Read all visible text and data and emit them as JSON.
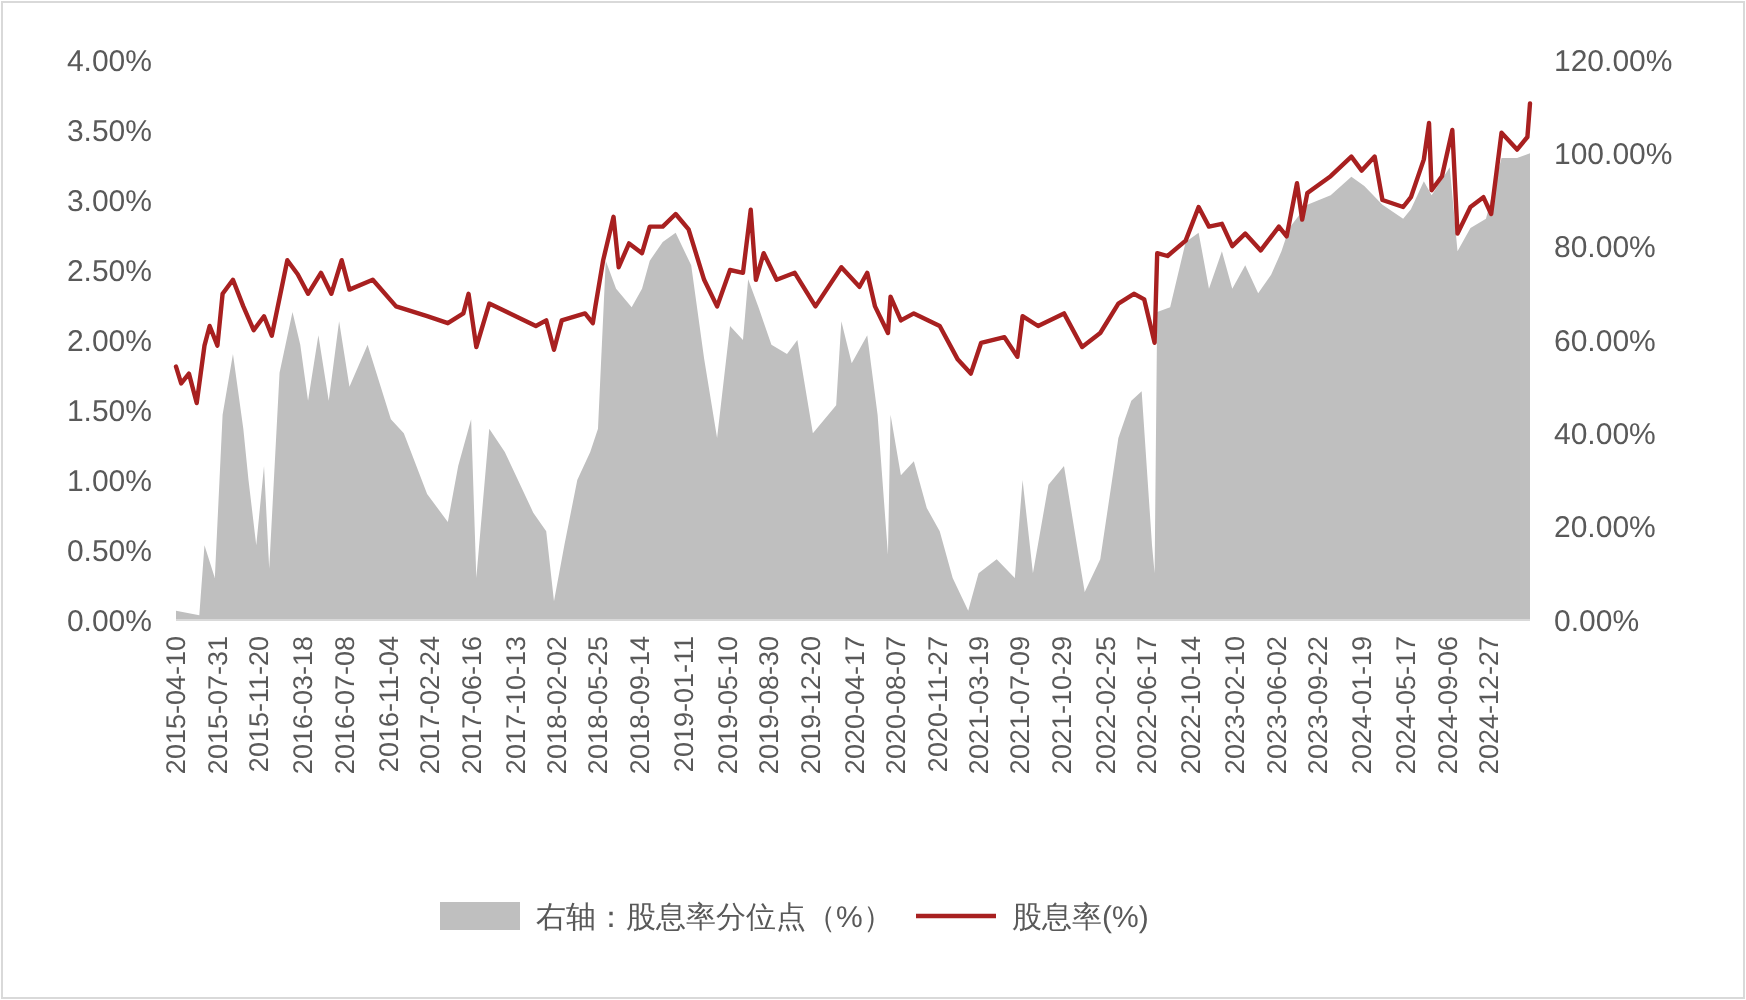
{
  "chart_data": {
    "type": "line",
    "legend": "bottom",
    "grid": false,
    "xlim": [
      "2015-04-10",
      "2025-04-18"
    ],
    "xticks": [
      "2015-04-10",
      "2015-07-31",
      "2015-11-20",
      "2016-03-18",
      "2016-07-08",
      "2016-11-04",
      "2017-02-24",
      "2017-06-16",
      "2017-10-13",
      "2018-02-02",
      "2018-05-25",
      "2018-09-14",
      "2019-01-11",
      "2019-05-10",
      "2019-08-30",
      "2019-12-20",
      "2020-04-17",
      "2020-08-07",
      "2020-11-27",
      "2021-03-19",
      "2021-07-09",
      "2021-10-29",
      "2022-02-25",
      "2022-06-17",
      "2022-10-14",
      "2023-02-10",
      "2023-06-02",
      "2023-09-22",
      "2024-01-19",
      "2024-05-17",
      "2024-09-06",
      "2024-12-27"
    ],
    "ylim": [
      0,
      4
    ],
    "yticks": [
      {
        "value": 0,
        "label": "0.00%"
      },
      {
        "value": 0.5,
        "label": "0.50%"
      },
      {
        "value": 1,
        "label": "1.00%"
      },
      {
        "value": 1.5,
        "label": "1.50%"
      },
      {
        "value": 2,
        "label": "2.00%"
      },
      {
        "value": 2.5,
        "label": "2.50%"
      },
      {
        "value": 3,
        "label": "3.00%"
      },
      {
        "value": 3.5,
        "label": "3.50%"
      },
      {
        "value": 4,
        "label": "4.00%"
      }
    ],
    "y2lim": [
      0,
      120
    ],
    "y2ticks": [
      {
        "value": 0,
        "label": "0.00%"
      },
      {
        "value": 20,
        "label": "20.00%"
      },
      {
        "value": 40,
        "label": "40.00%"
      },
      {
        "value": 60,
        "label": "60.00%"
      },
      {
        "value": 80,
        "label": "80.00%"
      },
      {
        "value": 100,
        "label": "100.00%"
      },
      {
        "value": 120,
        "label": "120.00%"
      }
    ],
    "series": [
      {
        "name": "右轴：股息率分位点（%）",
        "type": "area",
        "axis": "y2",
        "color": "#bfbfbf",
        "x": [
          "2015-04-10",
          "2015-06-12",
          "2015-06-26",
          "2015-07-24",
          "2015-08-14",
          "2015-09-11",
          "2015-10-09",
          "2015-10-23",
          "2015-11-13",
          "2015-12-04",
          "2015-12-18",
          "2016-01-15",
          "2016-02-19",
          "2016-03-11",
          "2016-04-01",
          "2016-04-29",
          "2016-05-27",
          "2016-06-24",
          "2016-07-22",
          "2016-09-09",
          "2016-11-11",
          "2016-12-16",
          "2017-02-17",
          "2017-04-14",
          "2017-05-12",
          "2017-06-16",
          "2017-06-30",
          "2017-08-04",
          "2017-09-15",
          "2017-12-01",
          "2018-01-05",
          "2018-01-26",
          "2018-02-23",
          "2018-03-30",
          "2018-05-04",
          "2018-05-25",
          "2018-06-15",
          "2018-07-13",
          "2018-08-24",
          "2018-09-21",
          "2018-10-12",
          "2018-11-16",
          "2018-12-21",
          "2019-02-01",
          "2019-03-08",
          "2019-04-12",
          "2019-05-17",
          "2019-06-21",
          "2019-07-05",
          "2019-08-02",
          "2019-09-06",
          "2019-10-18",
          "2019-11-15",
          "2019-12-27",
          "2020-02-28",
          "2020-03-13",
          "2020-04-10",
          "2020-05-22",
          "2020-06-19",
          "2020-07-17",
          "2020-07-24",
          "2020-08-21",
          "2020-09-25",
          "2020-10-30",
          "2020-12-04",
          "2021-01-08",
          "2021-02-19",
          "2021-03-19",
          "2021-05-07",
          "2021-06-25",
          "2021-07-16",
          "2021-08-13",
          "2021-09-24",
          "2021-11-05",
          "2021-12-10",
          "2021-12-31",
          "2022-02-11",
          "2022-04-01",
          "2022-05-06",
          "2022-06-03",
          "2022-07-01",
          "2022-07-08",
          "2022-07-15",
          "2022-08-19",
          "2022-09-30",
          "2022-11-04",
          "2022-12-02",
          "2023-01-06",
          "2023-02-03",
          "2023-03-10",
          "2023-04-14",
          "2023-05-19",
          "2023-06-16",
          "2023-07-07",
          "2023-08-25",
          "2023-10-27",
          "2023-12-22",
          "2024-01-26",
          "2024-03-15",
          "2024-05-10",
          "2024-05-31",
          "2024-07-05",
          "2024-07-26",
          "2024-09-13",
          "2024-10-04",
          "2024-11-08",
          "2024-12-20",
          "2025-01-31",
          "2025-03-14",
          "2025-04-18"
        ],
        "values": [
          2,
          1,
          16,
          9,
          44,
          57,
          41,
          30,
          16,
          33,
          11,
          53,
          66,
          59,
          47,
          61,
          47,
          64,
          50,
          59,
          43,
          40,
          27,
          21,
          33,
          43,
          9,
          41,
          36,
          23,
          19,
          4,
          16,
          30,
          36,
          41,
          77,
          71,
          67,
          71,
          77,
          81,
          83,
          76,
          56,
          39,
          63,
          60,
          73,
          67,
          59,
          57,
          60,
          40,
          46,
          64,
          55,
          61,
          44,
          14,
          44,
          31,
          34,
          24,
          19,
          9,
          2,
          10,
          13,
          9,
          30,
          10,
          29,
          33,
          16,
          6,
          13,
          39,
          47,
          49,
          16,
          10,
          66,
          67,
          81,
          83,
          71,
          79,
          71,
          76,
          70,
          74,
          79,
          84,
          89,
          91,
          95,
          93,
          89,
          86,
          88,
          94,
          91,
          97,
          79,
          84,
          86,
          99,
          99,
          100
        ]
      },
      {
        "name": "股息率(%)",
        "color": "#a82020",
        "x": [
          "2015-04-10",
          "2015-04-24",
          "2015-05-15",
          "2015-06-05",
          "2015-06-26",
          "2015-07-10",
          "2015-07-31",
          "2015-08-14",
          "2015-09-11",
          "2015-10-09",
          "2015-11-06",
          "2015-12-04",
          "2015-12-25",
          "2016-02-05",
          "2016-03-04",
          "2016-04-01",
          "2016-05-06",
          "2016-06-03",
          "2016-07-01",
          "2016-07-22",
          "2016-09-23",
          "2016-11-25",
          "2017-02-17",
          "2017-04-14",
          "2017-05-26",
          "2017-06-09",
          "2017-06-30",
          "2017-08-04",
          "2017-09-29",
          "2017-12-08",
          "2018-01-05",
          "2018-01-26",
          "2018-02-16",
          "2018-04-20",
          "2018-05-11",
          "2018-05-18",
          "2018-06-08",
          "2018-07-06",
          "2018-07-20",
          "2018-08-17",
          "2018-09-21",
          "2018-10-12",
          "2018-11-16",
          "2018-12-21",
          "2019-01-25",
          "2019-03-08",
          "2019-04-12",
          "2019-05-17",
          "2019-06-21",
          "2019-07-12",
          "2019-07-26",
          "2019-08-16",
          "2019-09-20",
          "2019-11-08",
          "2020-01-03",
          "2020-03-13",
          "2020-05-01",
          "2020-05-22",
          "2020-06-12",
          "2020-07-17",
          "2020-07-24",
          "2020-08-21",
          "2020-09-25",
          "2020-12-04",
          "2021-01-22",
          "2021-02-26",
          "2021-03-26",
          "2021-05-28",
          "2021-07-02",
          "2021-07-16",
          "2021-08-27",
          "2021-11-05",
          "2021-12-24",
          "2022-02-11",
          "2022-04-01",
          "2022-05-13",
          "2022-06-10",
          "2022-07-08",
          "2022-07-15",
          "2022-08-12",
          "2022-09-30",
          "2022-11-04",
          "2022-12-02",
          "2023-01-06",
          "2023-02-03",
          "2023-03-10",
          "2023-04-21",
          "2023-06-09",
          "2023-06-30",
          "2023-07-28",
          "2023-08-11",
          "2023-08-25",
          "2023-10-27",
          "2023-12-22",
          "2024-01-19",
          "2024-02-23",
          "2024-03-15",
          "2024-05-10",
          "2024-05-31",
          "2024-07-05",
          "2024-07-19",
          "2024-07-26",
          "2024-08-23",
          "2024-09-20",
          "2024-10-04",
          "2024-11-08",
          "2024-12-13",
          "2025-01-03",
          "2025-01-31",
          "2025-03-14",
          "2025-04-11",
          "2025-04-18"
        ],
        "values": [
          1.81,
          1.69,
          1.76,
          1.55,
          1.96,
          2.1,
          1.96,
          2.33,
          2.43,
          2.24,
          2.07,
          2.17,
          2.03,
          2.57,
          2.47,
          2.33,
          2.48,
          2.33,
          2.57,
          2.36,
          2.43,
          2.24,
          2.17,
          2.12,
          2.19,
          2.33,
          1.95,
          2.26,
          2.19,
          2.1,
          2.14,
          1.93,
          2.14,
          2.19,
          2.12,
          2.24,
          2.57,
          2.88,
          2.52,
          2.69,
          2.62,
          2.81,
          2.81,
          2.9,
          2.79,
          2.43,
          2.24,
          2.5,
          2.48,
          2.93,
          2.43,
          2.62,
          2.43,
          2.48,
          2.24,
          2.52,
          2.38,
          2.48,
          2.24,
          2.05,
          2.31,
          2.14,
          2.19,
          2.1,
          1.86,
          1.76,
          1.98,
          2.02,
          1.88,
          2.17,
          2.1,
          2.19,
          1.95,
          2.05,
          2.26,
          2.33,
          2.29,
          1.98,
          2.62,
          2.6,
          2.71,
          2.95,
          2.81,
          2.83,
          2.67,
          2.76,
          2.64,
          2.81,
          2.74,
          3.12,
          2.86,
          3.05,
          3.17,
          3.31,
          3.21,
          3.31,
          3.0,
          2.95,
          3.02,
          3.29,
          3.55,
          3.07,
          3.17,
          3.5,
          2.76,
          2.95,
          3.02,
          2.9,
          3.48,
          3.36,
          3.45,
          3.69
        ]
      }
    ]
  }
}
